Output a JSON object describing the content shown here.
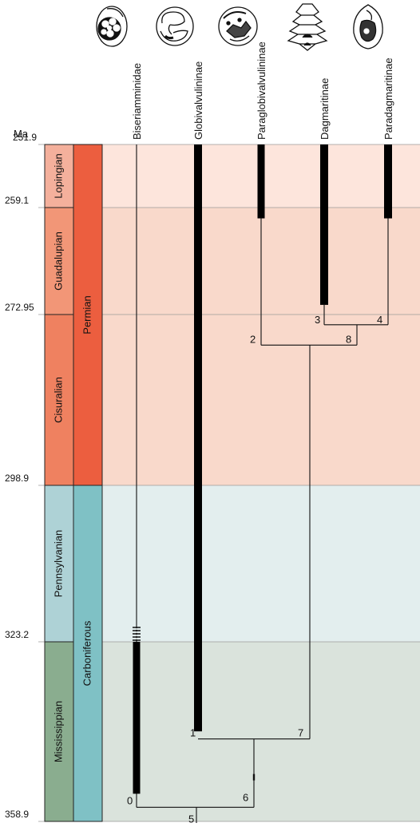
{
  "diagram": {
    "axis_unit": "Ma",
    "age_ticks": [
      {
        "age": 251.9,
        "label": "251.9"
      },
      {
        "age": 259.1,
        "label": "259.1"
      },
      {
        "age": 272.95,
        "label": "272.95"
      },
      {
        "age": 298.9,
        "label": "298.9"
      },
      {
        "age": 323.2,
        "label": "323.2"
      },
      {
        "age": 358.9,
        "label": "358.9"
      }
    ],
    "periods": [
      {
        "name": "Permian",
        "start": 251.9,
        "end": 298.9,
        "color": "#ec5e3f",
        "band_color": "#fde5dc"
      },
      {
        "name": "Carboniferous",
        "start": 298.9,
        "end": 358.9,
        "color": "#7fc1c5",
        "band_color": "#e3eeee"
      }
    ],
    "epochs": [
      {
        "name": "Lopingian",
        "start": 251.9,
        "end": 259.1,
        "color": "#f4b09c",
        "band_color": "#fde5dc"
      },
      {
        "name": "Guadalupian",
        "start": 259.1,
        "end": 272.95,
        "color": "#f29677",
        "band_color": "#f9d9cb"
      },
      {
        "name": "Cisuralian",
        "start": 272.95,
        "end": 298.9,
        "color": "#ef8160",
        "band_color": "#f9d9cb"
      },
      {
        "name": "Pennsylvanian",
        "start": 298.9,
        "end": 323.2,
        "color": "#aed2d6",
        "band_color": "#e3eeee"
      },
      {
        "name": "Mississippian",
        "start": 323.2,
        "end": 358.9,
        "color": "#8aad8f",
        "band_color": "#dae3dc"
      }
    ],
    "taxa": [
      {
        "name": "Biseriamminidae",
        "range_start": 323.2,
        "range_end": 353.4,
        "hatched_end": 323.2,
        "icon": "biseriamminid-shell-icon"
      },
      {
        "name": "Globivalvulininae",
        "range_start": 251.9,
        "range_end": 341.0,
        "icon": "globivalvulinine-shell-icon"
      },
      {
        "name": "Paraglobivalvulininae",
        "range_start": 251.9,
        "range_end": 260.5,
        "icon": "paraglobivalvulinine-shell-icon"
      },
      {
        "name": "Dagmaritinae",
        "range_start": 251.9,
        "range_end": 271.7,
        "icon": "dagmaritine-shell-icon"
      },
      {
        "name": "Paradagmaritinae",
        "range_start": 251.9,
        "range_end": 260.5,
        "icon": "paradagmaritine-shell-icon"
      }
    ],
    "nodes": [
      {
        "label": "0",
        "age": 356.1
      },
      {
        "label": "1",
        "age": 342.5
      },
      {
        "label": "2",
        "age": 277.6
      },
      {
        "label": "3",
        "age": 274.5
      },
      {
        "label": "4",
        "age": 274.5
      },
      {
        "label": "5",
        "age": 356.1
      },
      {
        "label": "6",
        "age": 351.7
      },
      {
        "label": "7",
        "age": 342.5
      },
      {
        "label": "8",
        "age": 277.6
      }
    ]
  }
}
